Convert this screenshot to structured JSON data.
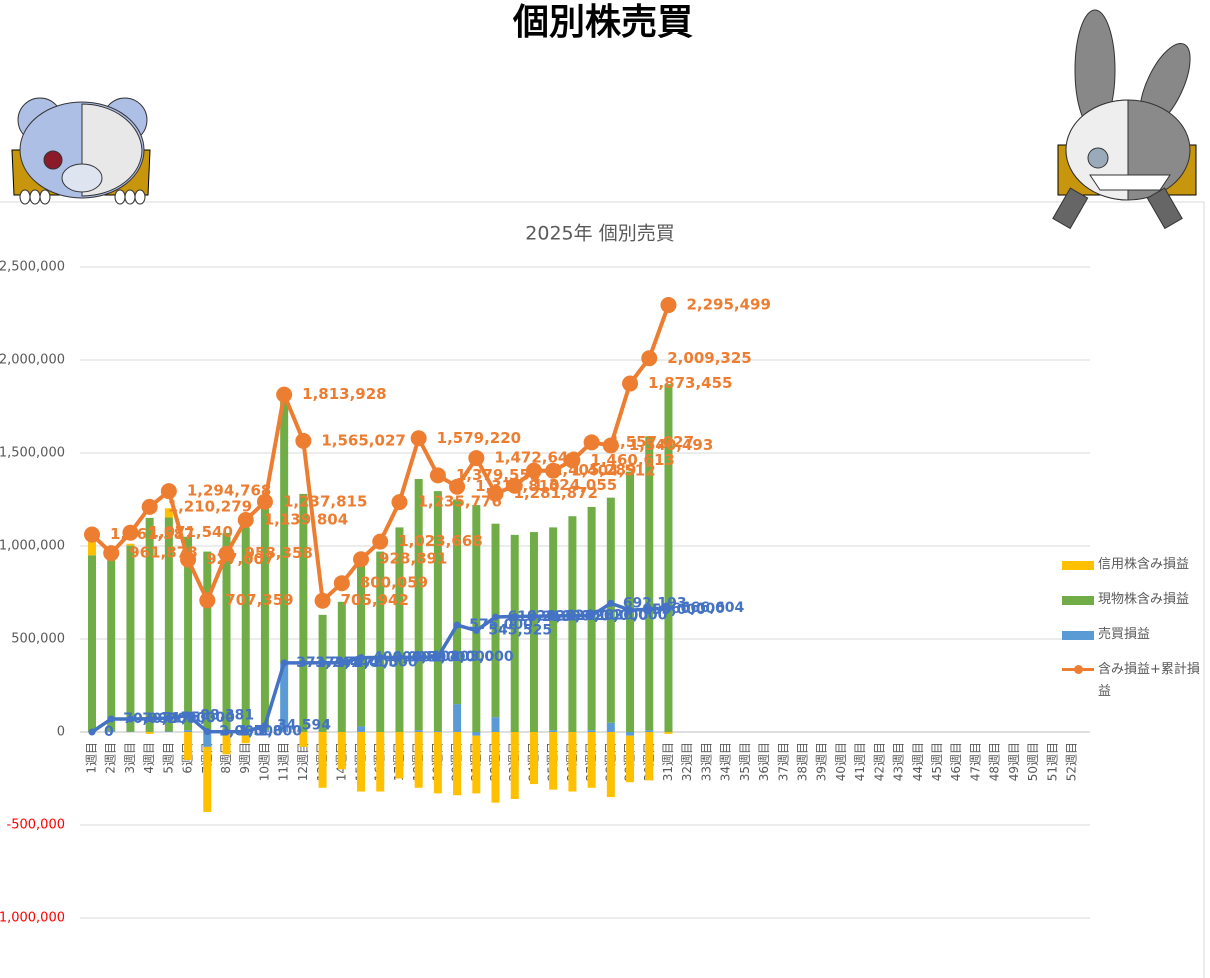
{
  "page_title": "個別株売買",
  "chart_data": {
    "type": "bar",
    "title": "2025年 個別売買",
    "categories": [
      "1週目",
      "2週目",
      "3週目",
      "4週目",
      "5週目",
      "6週目",
      "7週目",
      "8週目",
      "9週目",
      "10週目",
      "11週目",
      "12週目",
      "13週目",
      "14週目",
      "15週目",
      "16週目",
      "17週目",
      "18週目",
      "19週目",
      "20週目",
      "21週目",
      "22週目",
      "23週目",
      "24週目",
      "25週目",
      "26週目",
      "27週目",
      "28週目",
      "29週目",
      "30週目",
      "31週目",
      "32週目",
      "33週目",
      "34週目",
      "35週目",
      "36週目",
      "37週目",
      "38週目",
      "39週目",
      "40週目",
      "41週目",
      "42週目",
      "43週目",
      "44週目",
      "45週目",
      "46週目",
      "47週目",
      "48週目",
      "49週目",
      "50週目",
      "51週目",
      "52週目"
    ],
    "series": [
      {
        "name": "信用株含み損益",
        "kind": "bar",
        "color": "#ffc000",
        "values": [
          100000,
          20000,
          10000,
          -10000,
          50000,
          -150000,
          -350000,
          -120000,
          -60000,
          10000,
          10000,
          -80000,
          -300000,
          -200000,
          -320000,
          -320000,
          -250000,
          -300000,
          -330000,
          -340000,
          -310000,
          -380000,
          -360000,
          -280000,
          -310000,
          -320000,
          -300000,
          -350000,
          -250000,
          -260000,
          -10000,
          null,
          null,
          null,
          null,
          null,
          null,
          null,
          null,
          null,
          null,
          null,
          null,
          null,
          null,
          null,
          null,
          null,
          null,
          null,
          null,
          null
        ]
      },
      {
        "name": "現物株含み損益",
        "kind": "bar",
        "color": "#70ad47",
        "values": [
          950000,
          950000,
          1000000,
          1150000,
          1150000,
          1040000,
          970000,
          1070000,
          1100000,
          1200000,
          1430000,
          1280000,
          630000,
          700000,
          920000,
          970000,
          1100000,
          1350000,
          1290000,
          1100000,
          1220000,
          1040000,
          1060000,
          1075000,
          1090000,
          1160000,
          1200000,
          1210000,
          1400000,
          1580000,
          1870000,
          null,
          null,
          null,
          null,
          null,
          null,
          null,
          null,
          null,
          null,
          null,
          null,
          null,
          null,
          null,
          null,
          null,
          null,
          null,
          null,
          null
        ]
      },
      {
        "name": "売買損益",
        "kind": "bar",
        "color": "#5b9bd5",
        "values": [
          0,
          5000,
          2000,
          1000,
          3000,
          10000,
          -80000,
          0,
          0,
          10000,
          370000,
          0,
          0,
          0,
          30000,
          0,
          0,
          10000,
          5000,
          150000,
          -20000,
          80000,
          0,
          0,
          10000,
          0,
          10000,
          50000,
          -20000,
          10000,
          0,
          null,
          null,
          null,
          null,
          null,
          null,
          null,
          null,
          null,
          null,
          null,
          null,
          null,
          null,
          null,
          null,
          null,
          null,
          null,
          null,
          null
        ]
      },
      {
        "name": "含み損益+累計損益",
        "kind": "line",
        "color": "#ed7d31",
        "values": [
          1061587,
          961878,
          1071540,
          1210279,
          1294768,
          927007,
          707359,
          958358,
          1139804,
          1237815,
          1813928,
          1565027,
          705942,
          800059,
          928891,
          1023668,
          1235776,
          1579220,
          1379553,
          1318810,
          1472648,
          1281872,
          1324055,
          1405289,
          1404512,
          1460613,
          1557027,
          1540493,
          1873455,
          2009325,
          2295499,
          null,
          null,
          null,
          null,
          null,
          null,
          null,
          null,
          null,
          null,
          null,
          null,
          null,
          null,
          null,
          null,
          null,
          null,
          null,
          null,
          null
        ],
        "value_labels": [
          "1,061,587",
          "961,878",
          "1,071,540",
          "1,210,279",
          "1,294,768",
          "927,007",
          "707,359",
          "958,358",
          "1,139,804",
          "1,237,815",
          "1,813,928",
          "1,565,027",
          "705,942",
          "800,059",
          "928,891",
          "1,023,668",
          "1,235,776",
          "1,579,220",
          "1,379,553",
          "1,318,810",
          "1,472,648",
          "1,281,872",
          "1,324,055",
          "1,405,289",
          "1,404,512",
          "1,460,613",
          "1,557,027",
          "1,540,493",
          "1,873,455",
          "2,009,325",
          "2,295,499",
          null,
          null,
          null,
          null,
          null,
          null,
          null,
          null,
          null,
          null,
          null,
          null,
          null,
          null,
          null,
          null,
          null,
          null,
          null,
          null,
          null
        ]
      },
      {
        "kind": "line",
        "color": "#4472c4",
        "values": [
          0,
          70000,
          70200,
          71500,
          75000,
          88381,
          2000,
          1500,
          1800,
          34594,
          371744,
          371744,
          372000,
          372500,
          400000,
          400500,
          401000,
          402000,
          403000,
          575000,
          545525,
          618213,
          621000,
          622000,
          624000,
          625000,
          626000,
          692193,
          655000,
          660000,
          666604,
          null,
          null,
          null,
          null,
          null,
          null,
          null,
          null,
          null,
          null,
          null,
          null,
          null,
          null,
          null,
          null,
          null,
          null,
          null,
          null,
          null
        ],
        "value_labels": [
          "0",
          "70,000",
          "70,200",
          "71,500",
          "75,000",
          "88,381",
          "2,000",
          "1,500",
          "1,800",
          "34,594",
          "371,744",
          "371,744",
          "372,000",
          "372,500",
          "400,000",
          "400,500",
          "401,000",
          "402,000",
          "403,000",
          "575,000",
          "545,525",
          "618,213",
          "621,000",
          "622,000",
          "624,000",
          "625,000",
          "626,000",
          "692,193",
          "655,000",
          "660,000",
          "666,604",
          null,
          null,
          null,
          null,
          null,
          null,
          null,
          null,
          null,
          null,
          null,
          null,
          null,
          null,
          null,
          null,
          null,
          null,
          null,
          null,
          null
        ]
      }
    ],
    "ylim": [
      -1000000,
      2500000
    ],
    "yticks": [
      {
        "value": -1000000,
        "label": "-1,000,000"
      },
      {
        "value": -500000,
        "label": "-500,000"
      },
      0,
      {
        "value": 500000,
        "label": "500,000"
      },
      {
        "value": 1000000,
        "label": "1,000,000"
      },
      {
        "value": 1500000,
        "label": "1,500,000"
      },
      {
        "value": 2000000,
        "label": "2,000,000"
      },
      {
        "value": 2500000,
        "label": "2,500,000"
      }
    ],
    "grid": true,
    "stacked": true,
    "negative_tick_color": "#ff0000",
    "legend": "right"
  }
}
